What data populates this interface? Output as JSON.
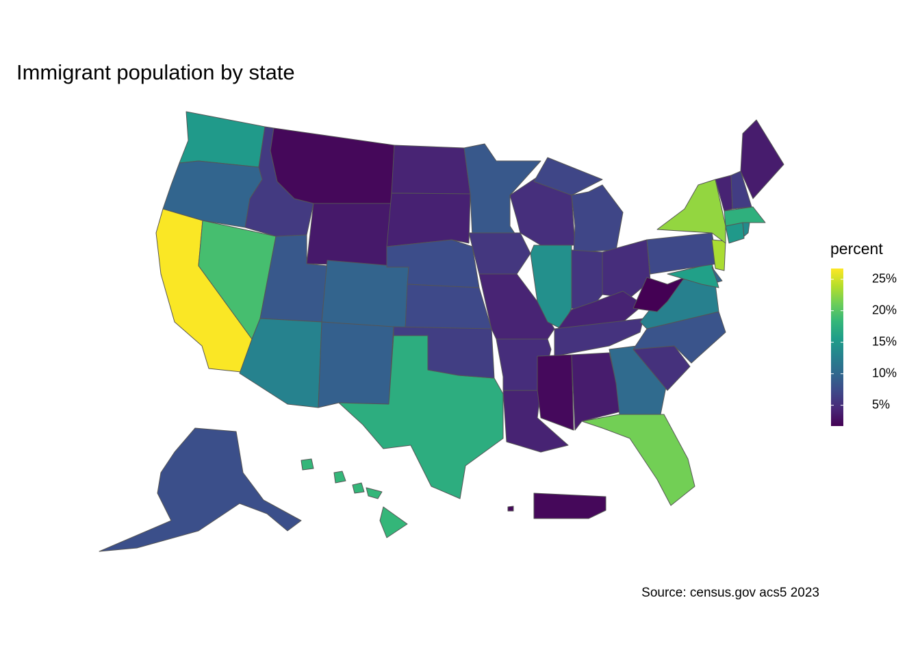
{
  "chart_data": {
    "type": "choropleth",
    "title": "Immigrant population by state",
    "caption": "Source: census.gov acs5 2023",
    "legend_title": "percent",
    "colorscale": "viridis",
    "clim": [
      1.7,
      26.7
    ],
    "legend_ticks": [
      {
        "value": 5,
        "label": "5%"
      },
      {
        "value": 10,
        "label": "10%"
      },
      {
        "value": 15,
        "label": "15%"
      },
      {
        "value": 20,
        "label": "20%"
      },
      {
        "value": 25,
        "label": "25%"
      }
    ],
    "values": [
      15.2,
      9.8,
      26.6,
      19.2,
      6.0,
      2.2,
      3.4,
      8.6,
      9.7,
      12.8,
      9.3,
      17.3,
      4.2,
      4.0,
      7.6,
      7.3,
      6.3,
      8.6,
      5.7,
      4.2,
      4.9,
      4.1,
      5.1,
      14.2,
      7.0,
      5.6,
      4.9,
      4.1,
      5.4,
      2.3,
      3.6,
      10.4,
      21.3,
      5.2,
      8.2,
      12.6,
      1.7,
      15.8,
      9.8,
      7.3,
      23.5,
      22.6,
      15.1,
      13.7,
      17.6,
      4.1,
      6.2,
      3.6,
      7.8,
      18.3,
      2.2
    ]
  }
}
